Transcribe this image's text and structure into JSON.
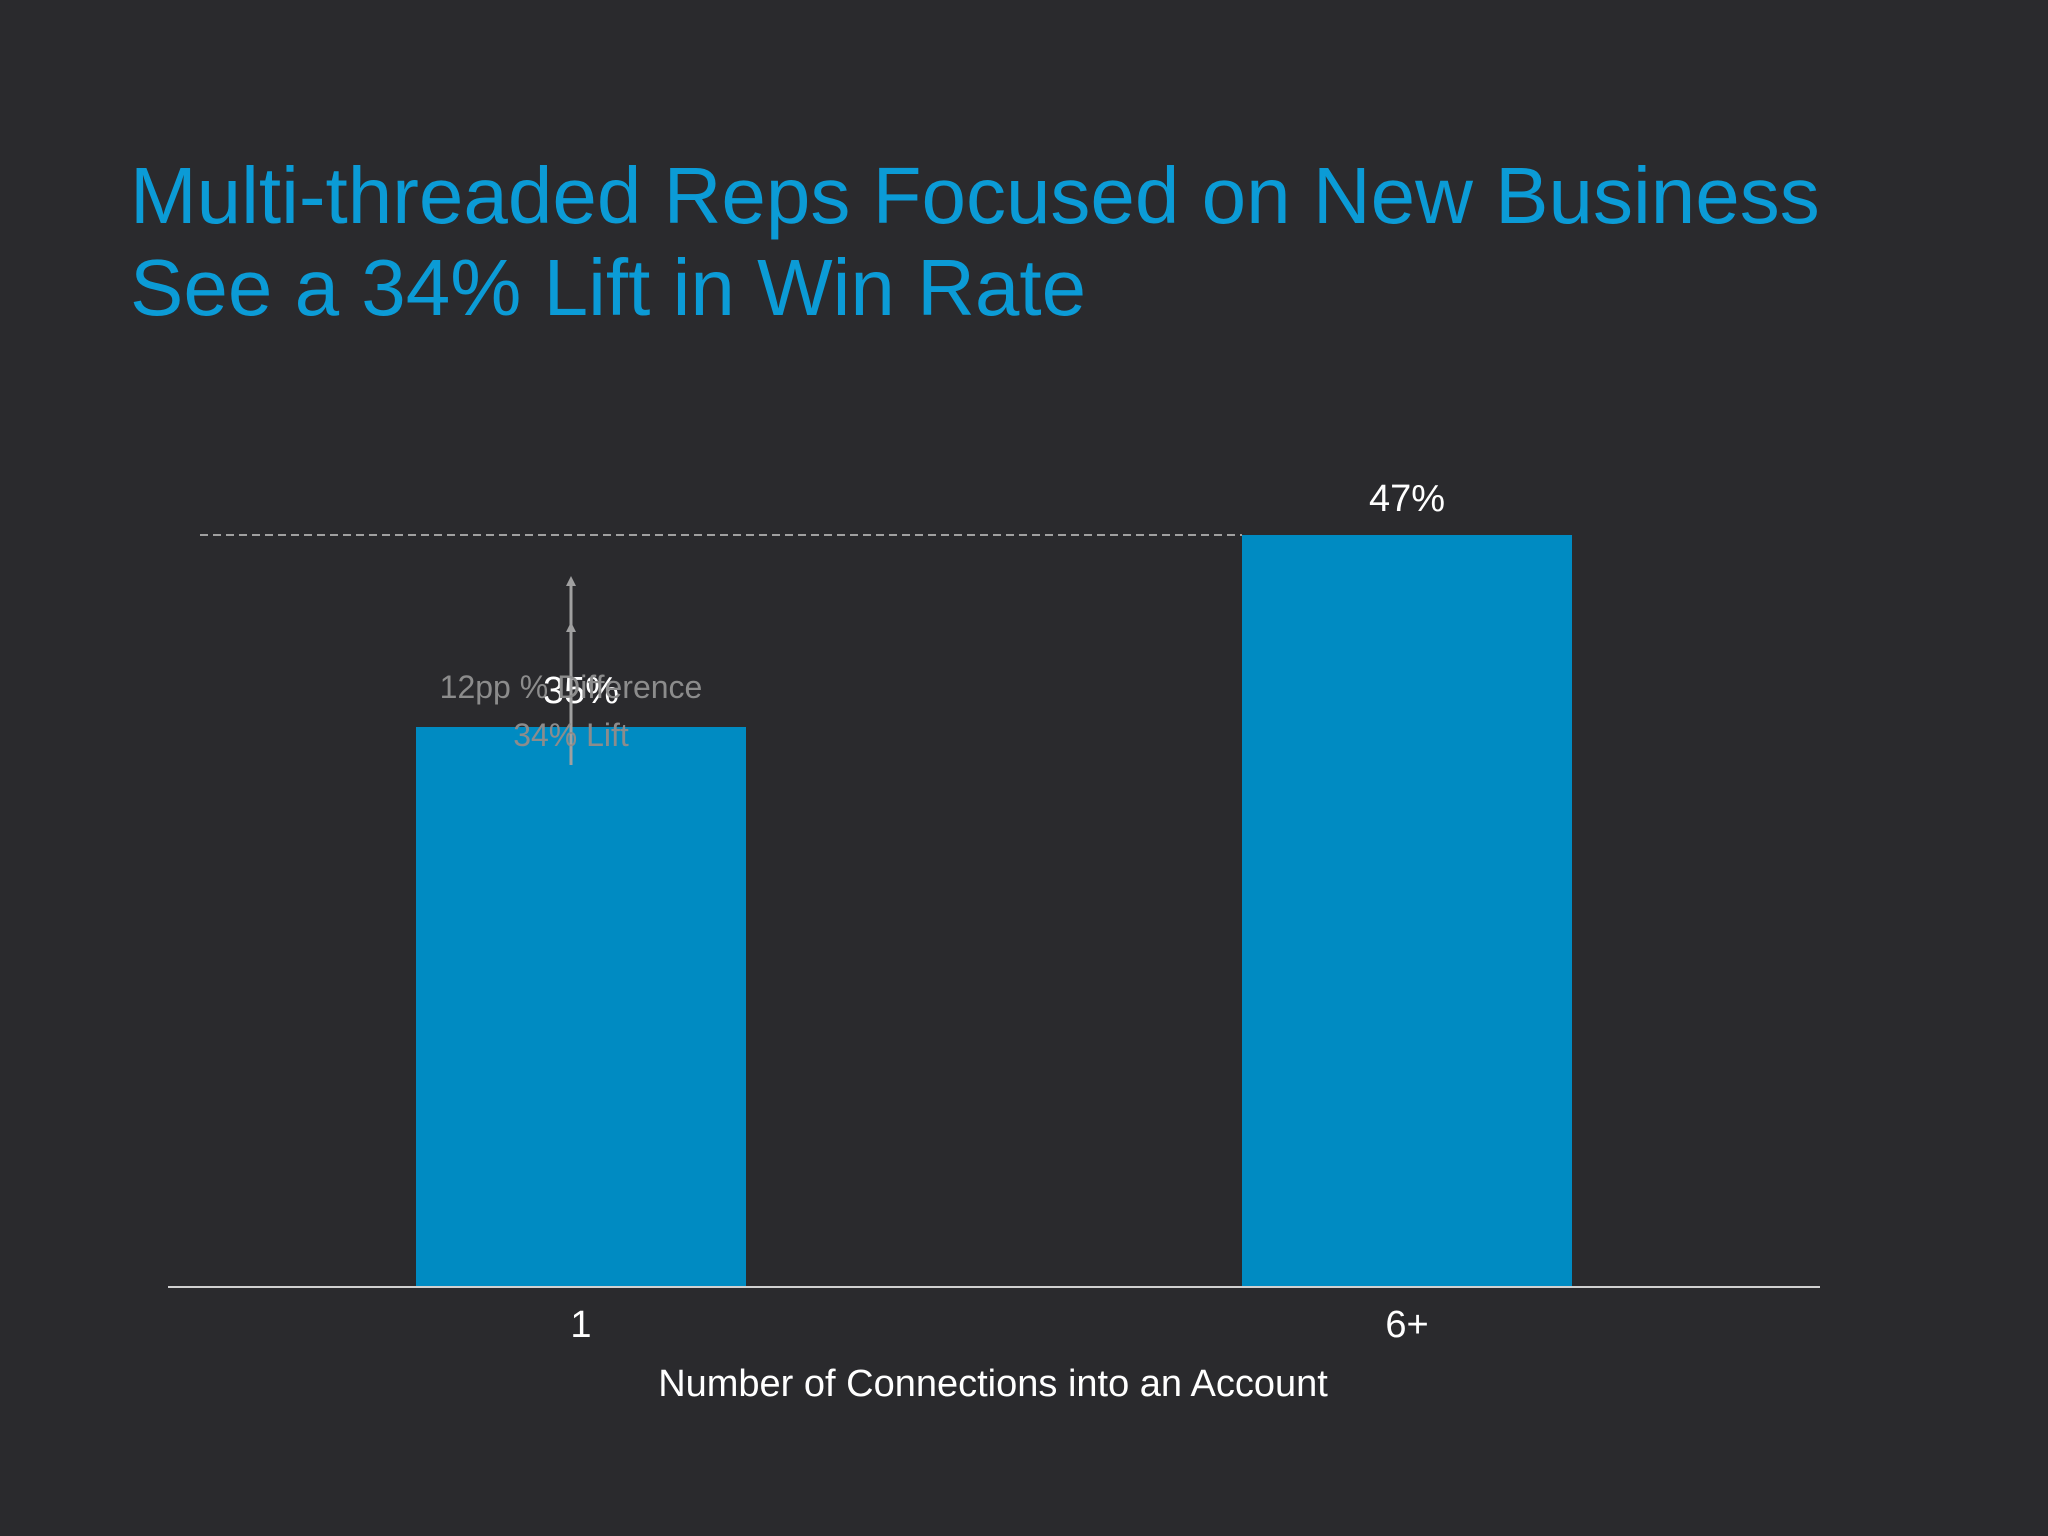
{
  "chart_data": {
    "type": "bar",
    "title_lines": [
      "Multi-threaded Reps Focused on New Business",
      "See a 34% Lift in Win Rate"
    ],
    "categories": [
      "1",
      "6+"
    ],
    "values": [
      35,
      47
    ],
    "value_labels": [
      "35%",
      "47%"
    ],
    "xlabel": "Number of Connections into an Account",
    "ylabel": "",
    "ylim": [
      0,
      47
    ],
    "grid": false,
    "legend": "none",
    "annotation": {
      "lines": [
        "12pp % Difference",
        "34% Lift"
      ]
    }
  },
  "colors": {
    "background": "#2a2a2d",
    "title": "#0b9bd6",
    "bar": "#008bc2",
    "text": "#ffffff",
    "annotation_text": "#8c8c8c",
    "annotation_line": "#a0a0a0",
    "axis": "#d0d0d0"
  }
}
